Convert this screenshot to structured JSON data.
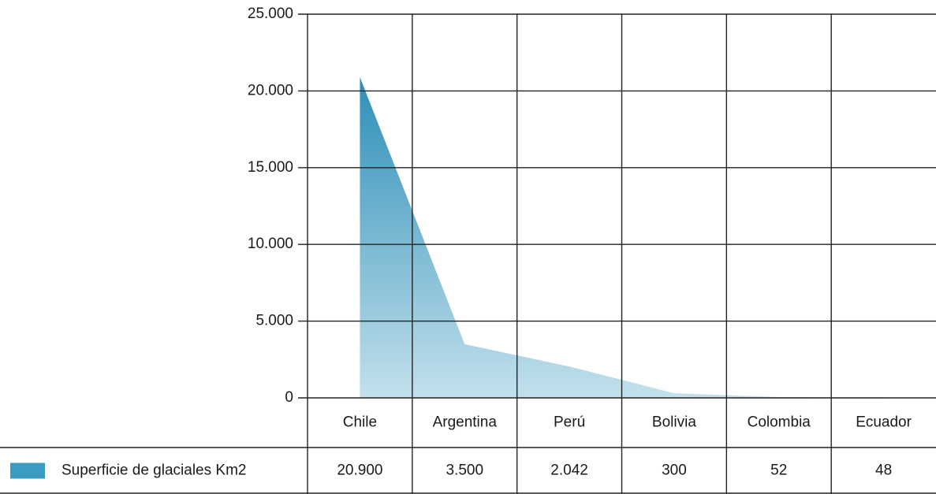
{
  "chart_data": {
    "type": "area",
    "categories": [
      "Chile",
      "Argentina",
      "Perú",
      "Bolivia",
      "Colombia",
      "Ecuador"
    ],
    "series": [
      {
        "name": "Superficie de glaciales Km2",
        "values": [
          20900,
          3500,
          2042,
          300,
          52,
          48
        ],
        "value_labels": [
          "20.900",
          "3.500",
          "2.042",
          "300",
          "52",
          "48"
        ],
        "color": "#3a9cc2"
      }
    ],
    "ylim": [
      0,
      25000
    ],
    "yticks": [
      0,
      5000,
      10000,
      15000,
      20000,
      25000
    ],
    "ytick_labels": [
      "0",
      "5.000",
      "10.000",
      "15.000",
      "20.000",
      "25.000"
    ],
    "grid": true,
    "legend": "bottom-left",
    "xlabel": "",
    "ylabel": ""
  }
}
